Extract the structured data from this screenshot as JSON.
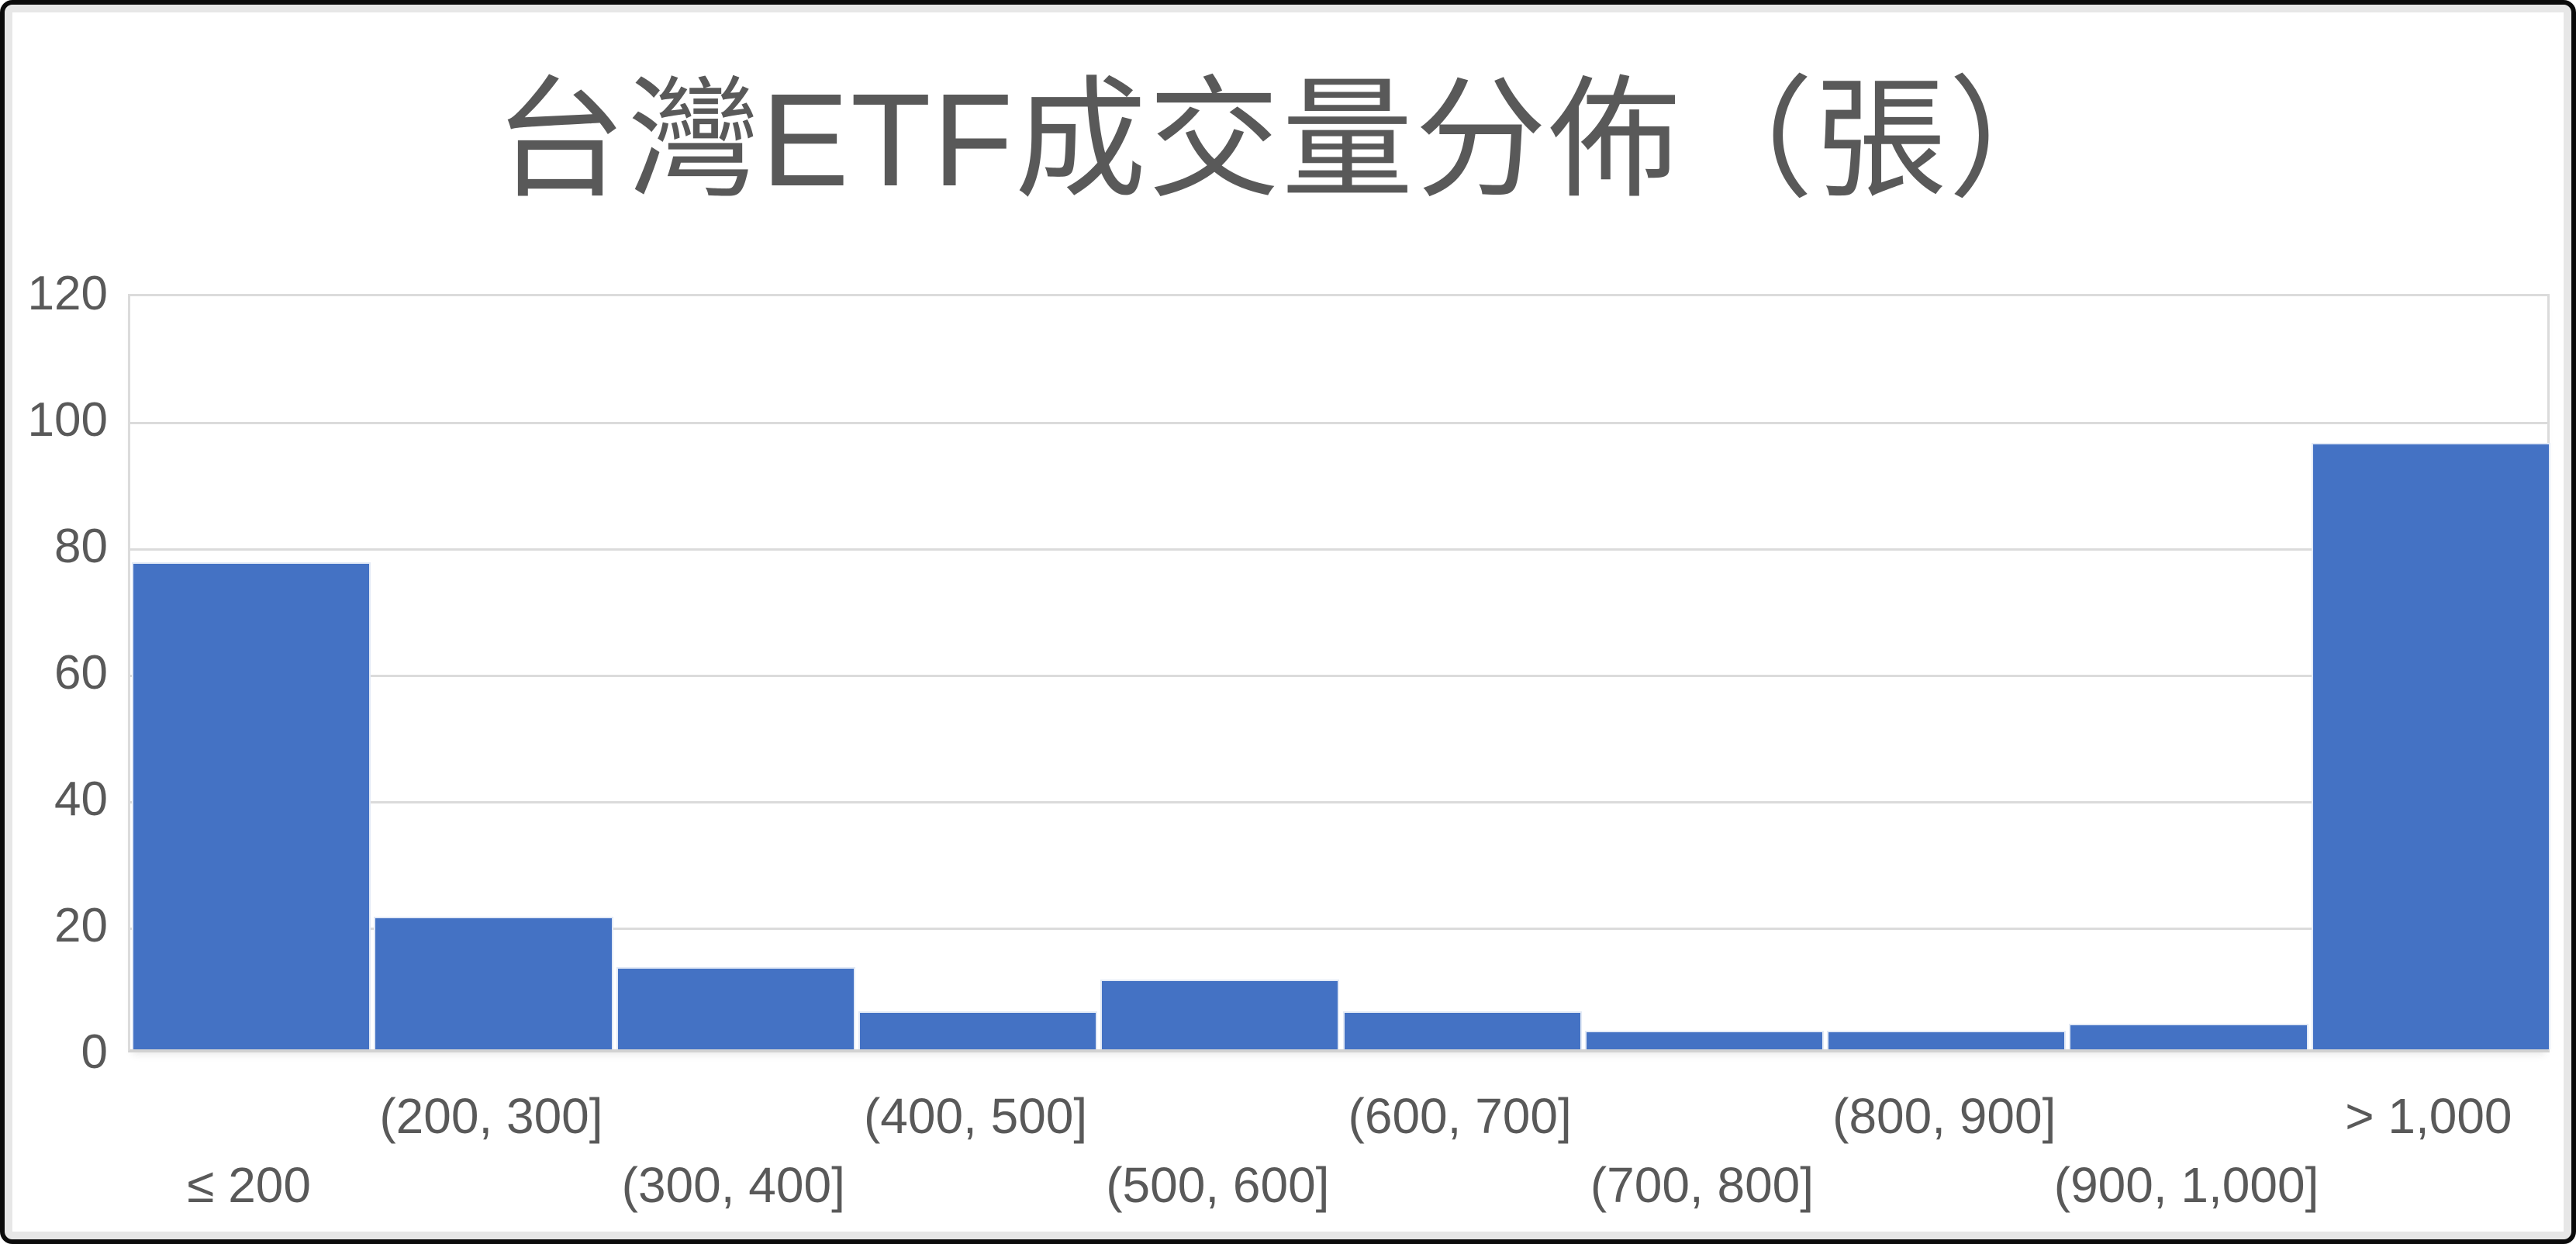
{
  "chart_data": {
    "type": "bar",
    "title": "台灣ETF成交量分佈（張）",
    "categories": [
      "≤ 200",
      "(200, 300]",
      "(300, 400]",
      "(400, 500]",
      "(500, 600]",
      "(600, 700]",
      "(700, 800]",
      "(800, 900]",
      "(900, 1,000]",
      "> 1,000"
    ],
    "values": [
      77,
      21,
      13,
      6,
      11,
      6,
      3,
      3,
      4,
      96
    ],
    "xlabel": "",
    "ylabel": "",
    "ylim": [
      0,
      120
    ],
    "yticks": [
      0,
      20,
      40,
      60,
      80,
      100,
      120
    ],
    "grid": "horizontal",
    "legend": "none",
    "x_label_layout": "staggered-two-rows",
    "bar_color": "#4472C4",
    "text_color": "#595959",
    "gridline_color": "#dbdbdb",
    "axis_line_color": "#d2d2d2",
    "background_color": "#ffffff",
    "frame_border_color": "#0b0b0b",
    "frame_margin_color": "#e7e7e7"
  }
}
